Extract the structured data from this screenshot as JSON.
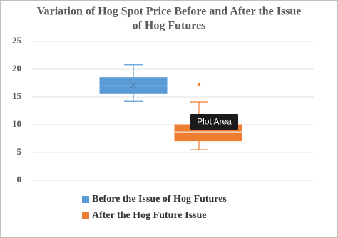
{
  "chart_data": {
    "type": "box",
    "title": [
      "Variation of Hog Spot Price Before and After the Issue",
      "of Hog Futures"
    ],
    "ylim": [
      0,
      25
    ],
    "yticks": [
      0,
      5,
      10,
      15,
      20,
      25
    ],
    "grid": true,
    "series": [
      {
        "name": "Before the Issue of Hog Futures",
        "color": "#5b9bd5",
        "min": 14.2,
        "q1": 15.6,
        "median": 17,
        "q3": 18.5,
        "max": 20.8,
        "mean": 17.1,
        "outliers": []
      },
      {
        "name": "After the Hog Future Issue",
        "color": "#ed7d31",
        "min": 5.5,
        "q1": 7.1,
        "median": 8.7,
        "q3": 10,
        "max": 14.1,
        "outliers": [
          17.2
        ]
      }
    ]
  },
  "tooltip": "Plot Area"
}
